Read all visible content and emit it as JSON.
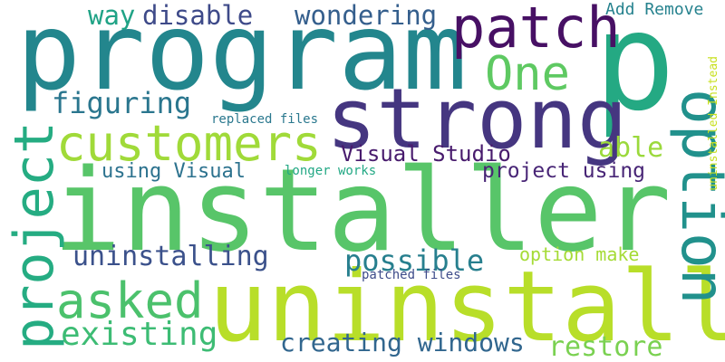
{
  "words": {
    "program": {
      "text": "program",
      "color": "#23868d"
    },
    "p": {
      "text": "p",
      "color": "#24a983"
    },
    "patch": {
      "text": "patch",
      "color": "#471064"
    },
    "strong": {
      "text": "strong",
      "color": "#453680"
    },
    "installer": {
      "text": "installer",
      "color": "#58c569"
    },
    "uninstall": {
      "text": "uninstall",
      "color": "#b8de29"
    },
    "project": {
      "text": "project",
      "color": "#25ac82"
    },
    "option": {
      "text": "option",
      "color": "#21918c"
    },
    "customers": {
      "text": "customers",
      "color": "#a0da39"
    },
    "one": {
      "text": "One",
      "color": "#5ec962"
    },
    "asked": {
      "text": "asked",
      "color": "#4bc16c"
    },
    "way": {
      "text": "way",
      "color": "#20a386"
    },
    "disable": {
      "text": "disable",
      "color": "#3e4a89"
    },
    "wondering": {
      "text": "wondering",
      "color": "#355f8d"
    },
    "add_remove": {
      "text": "Add Remove",
      "color": "#26828e"
    },
    "figuring": {
      "text": "figuring",
      "color": "#2a768e"
    },
    "replaced_files": {
      "text": "replaced files",
      "color": "#2a788e"
    },
    "uninstalled_instead": {
      "text": "uninstalled Instead",
      "color": "#c8e020"
    },
    "visual_studio": {
      "text": "Visual Studio",
      "color": "#481b6d"
    },
    "able": {
      "text": "able",
      "color": "#9bd93c"
    },
    "using_visual": {
      "text": "using Visual",
      "color": "#2c728e"
    },
    "longer_works": {
      "text": "longer works",
      "color": "#22a884"
    },
    "project_using": {
      "text": "project using",
      "color": "#482576"
    },
    "uninstalling": {
      "text": "uninstalling",
      "color": "#3b518b"
    },
    "possible": {
      "text": "possible",
      "color": "#277f8e"
    },
    "option_make": {
      "text": "option make",
      "color": "#a5db36"
    },
    "patched_files": {
      "text": "patched files",
      "color": "#3e4c8a"
    },
    "existing": {
      "text": "existing",
      "color": "#3dbc74"
    },
    "creating_windows": {
      "text": "creating windows",
      "color": "#31668e"
    },
    "restore": {
      "text": "restore",
      "color": "#7ad151"
    }
  }
}
